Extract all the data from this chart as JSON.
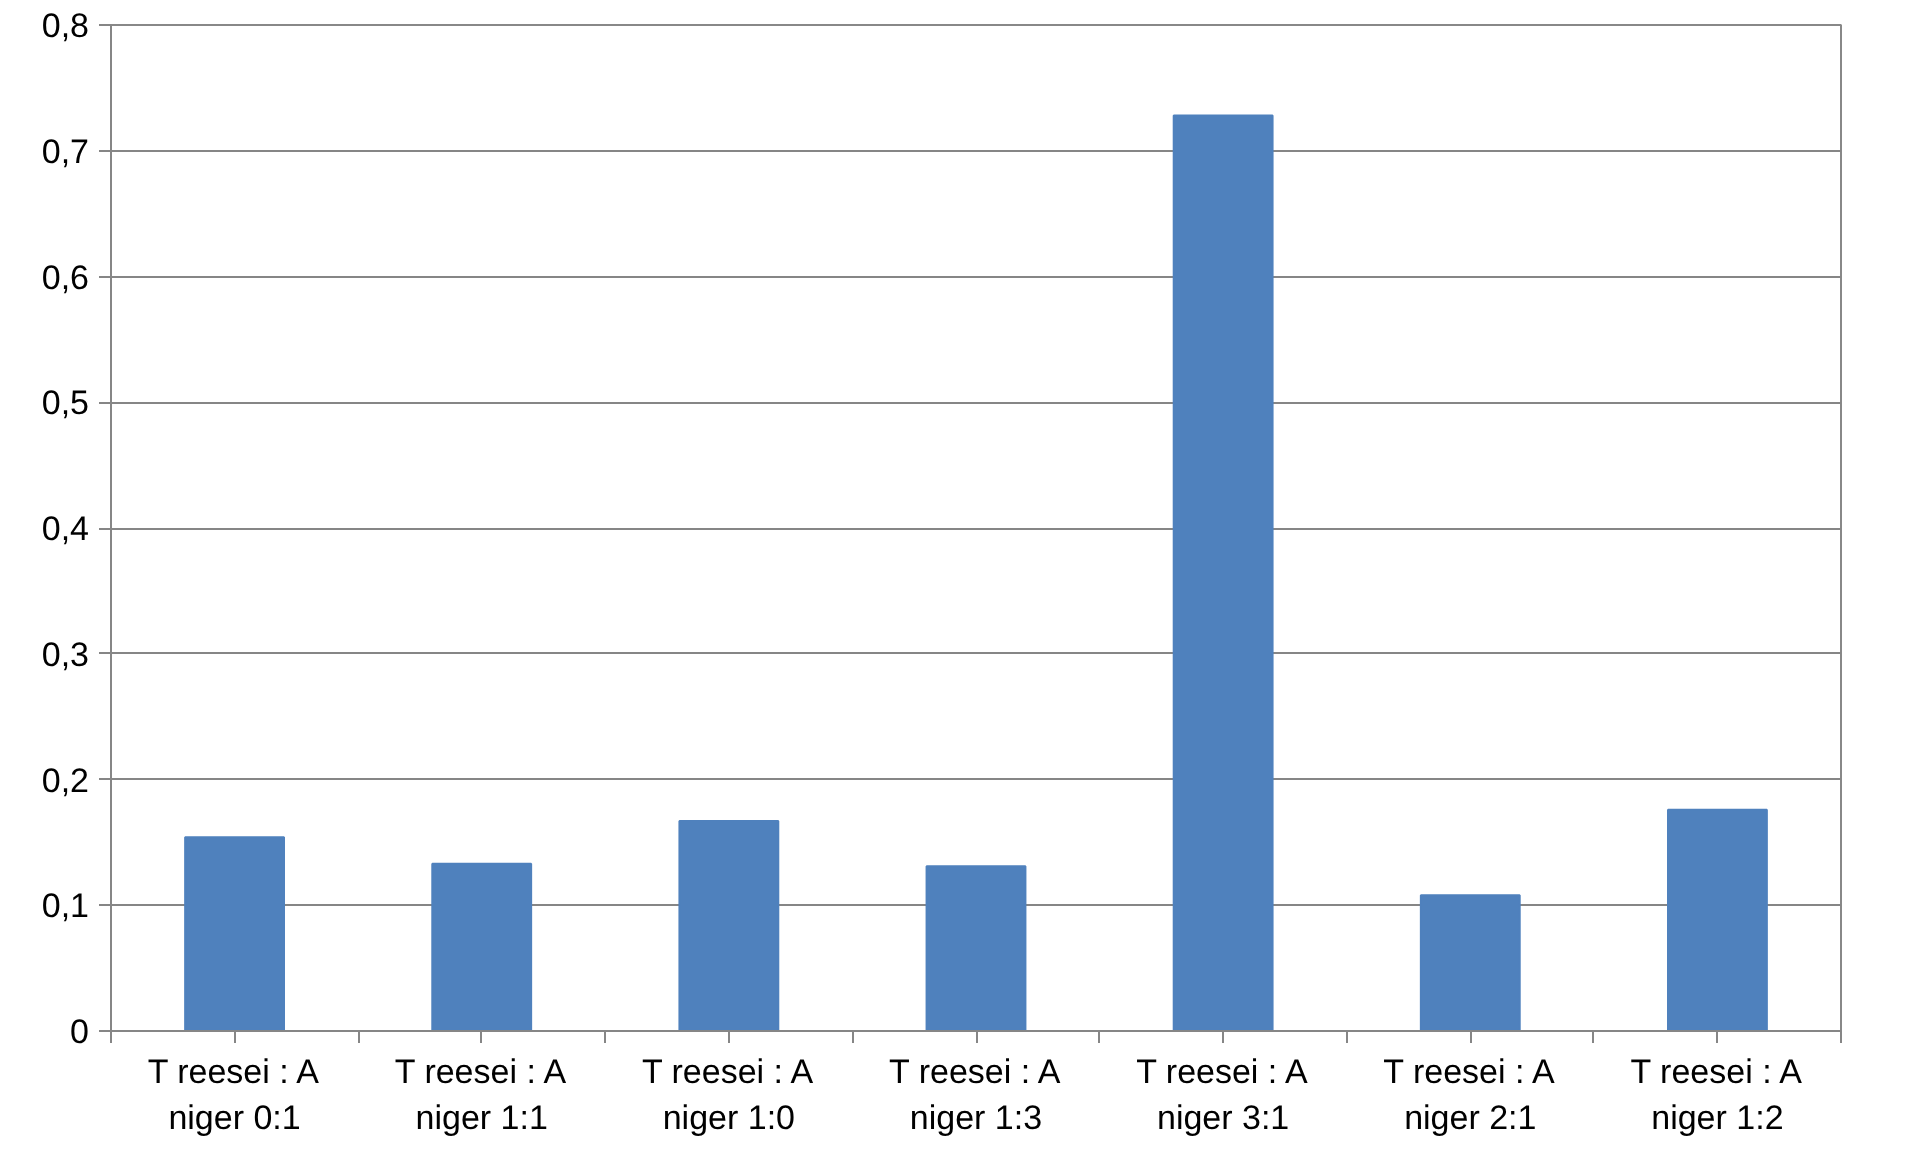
{
  "chart_data": {
    "type": "bar",
    "categories": [
      "T reesei : A niger 0:1",
      "T reesei : A niger 1:1",
      "T reesei : A niger 1:0",
      "T reesei : A niger 1:3",
      "T reesei : A niger 3:1",
      "T reesei : A niger 2:1",
      "T reesei : A niger 1:2"
    ],
    "values": [
      0.154,
      0.133,
      0.167,
      0.131,
      0.728,
      0.108,
      0.176
    ],
    "color": "#4f81bd",
    "ylim": [
      0,
      0.8
    ],
    "yticks": [
      0,
      {
        "value": 0.1,
        "label": "0,1"
      },
      {
        "value": 0.2,
        "label": "0,2"
      },
      {
        "value": 0.3,
        "label": "0,3"
      },
      {
        "value": 0.4,
        "label": "0,4"
      },
      {
        "value": 0.5,
        "label": "0,5"
      },
      {
        "value": 0.6,
        "label": "0,6"
      },
      {
        "value": 0.7,
        "label": "0,7"
      },
      {
        "value": 0.8,
        "label": "0,8"
      }
    ],
    "grid": "y"
  }
}
